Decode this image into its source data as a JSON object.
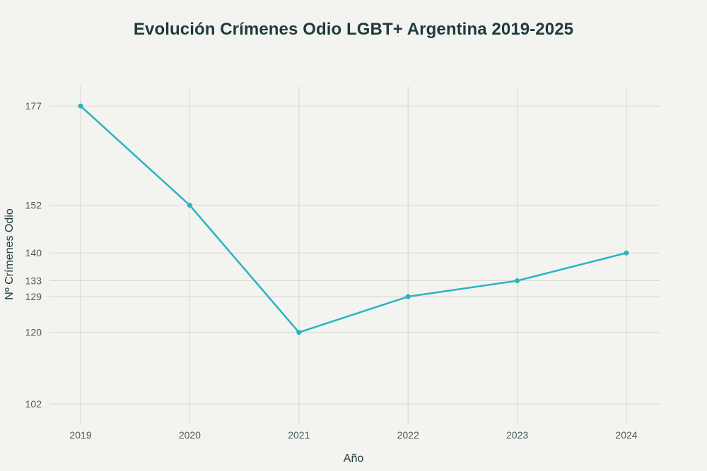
{
  "title": "Evolución Crímenes Odio LGBT+ Argentina 2019-2025",
  "colors": {
    "line": "#29b3c3",
    "grid": "#d6d6d2",
    "background": "#f3f3ef",
    "text": "#1f3a3d"
  },
  "chart_data": {
    "type": "line",
    "title": "Evolución Crímenes Odio LGBT+ Argentina 2019-2025",
    "xlabel": "Año",
    "ylabel": "Nº Crímenes Odio",
    "categories": [
      "2019",
      "2020",
      "2021",
      "2022",
      "2023",
      "2024"
    ],
    "series": [
      {
        "name": "Nº Crímenes Odio",
        "values": [
          177,
          152,
          120,
          129,
          133,
          140
        ]
      }
    ],
    "yticks": [
      102,
      120,
      129,
      133,
      140,
      152,
      177
    ],
    "ylim": [
      97,
      182
    ],
    "grid": true,
    "markers": true
  }
}
